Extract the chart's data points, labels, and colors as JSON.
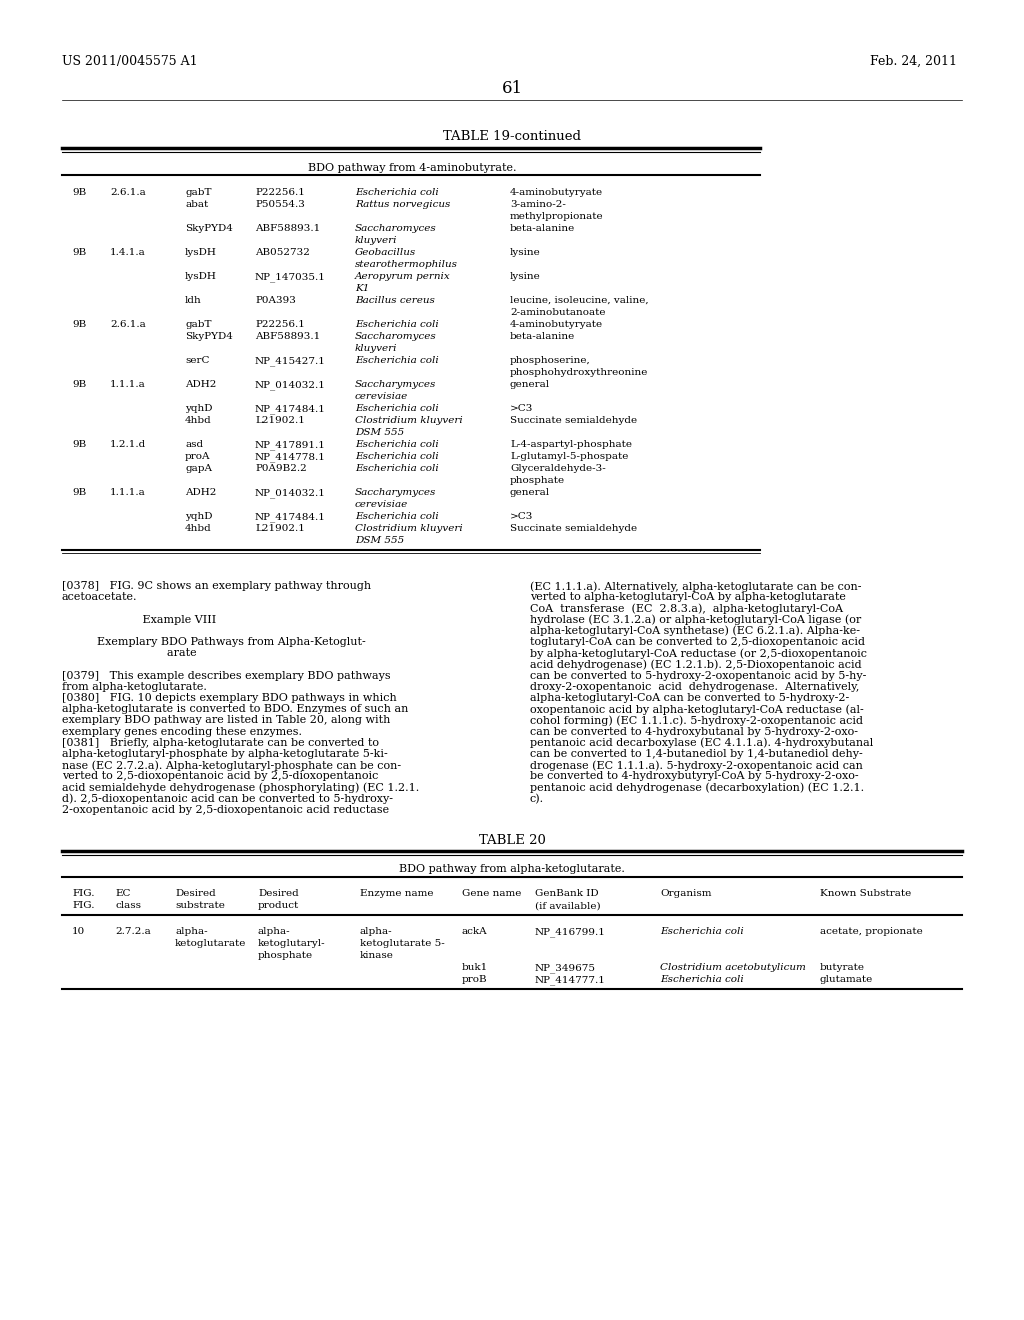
{
  "page_header_left": "US 2011/0045575 A1",
  "page_header_right": "Feb. 24, 2011",
  "page_number": "61",
  "table19_title": "TABLE 19-continued",
  "table19_subtitle": "BDO pathway from 4-aminobutyrate.",
  "table20_title": "TABLE 20",
  "table20_subtitle": "BDO pathway from alpha-ketoglutarate.",
  "background_color": "#ffffff",
  "text_color": "#000000"
}
